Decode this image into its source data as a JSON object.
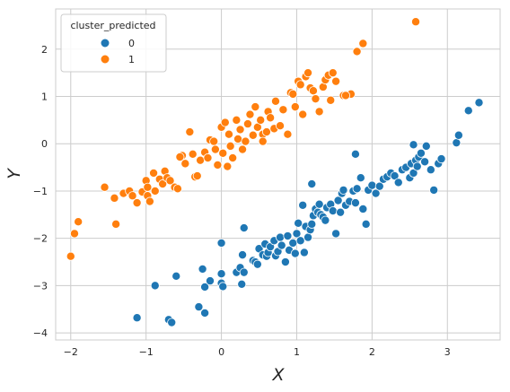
{
  "chart_data": {
    "type": "scatter",
    "xlabel": "X",
    "ylabel": "Y",
    "xlim": [
      -2.2,
      3.7
    ],
    "ylim": [
      -4.15,
      2.85
    ],
    "xticks": [
      -2,
      -1,
      0,
      1,
      2,
      3
    ],
    "yticks": [
      -4,
      -3,
      -2,
      -1,
      0,
      1,
      2
    ],
    "grid": true,
    "legend": {
      "title": "cluster_predicted",
      "placement": "top-left"
    },
    "series": [
      {
        "name": "0",
        "color": "#1f77b4",
        "points": [
          [
            -1.12,
            -3.68
          ],
          [
            -0.88,
            -3.0
          ],
          [
            -0.7,
            -3.72
          ],
          [
            -0.66,
            -3.78
          ],
          [
            -0.6,
            -2.8
          ],
          [
            -0.3,
            -3.45
          ],
          [
            -0.25,
            -2.65
          ],
          [
            -0.22,
            -3.58
          ],
          [
            -0.22,
            -3.03
          ],
          [
            -0.15,
            -2.9
          ],
          [
            0.0,
            -2.95
          ],
          [
            0.02,
            -3.02
          ],
          [
            0.0,
            -2.75
          ],
          [
            0.0,
            -2.1
          ],
          [
            0.2,
            -2.72
          ],
          [
            0.25,
            -2.62
          ],
          [
            0.27,
            -2.97
          ],
          [
            0.28,
            -2.35
          ],
          [
            0.3,
            -2.72
          ],
          [
            0.3,
            -1.78
          ],
          [
            0.42,
            -2.47
          ],
          [
            0.45,
            -2.5
          ],
          [
            0.48,
            -2.55
          ],
          [
            0.5,
            -2.22
          ],
          [
            0.55,
            -2.35
          ],
          [
            0.58,
            -2.12
          ],
          [
            0.6,
            -2.38
          ],
          [
            0.62,
            -2.3
          ],
          [
            0.65,
            -2.18
          ],
          [
            0.7,
            -2.05
          ],
          [
            0.72,
            -2.37
          ],
          [
            0.75,
            -2.28
          ],
          [
            0.78,
            -1.98
          ],
          [
            0.8,
            -2.15
          ],
          [
            0.85,
            -2.5
          ],
          [
            0.88,
            -1.95
          ],
          [
            0.9,
            -2.25
          ],
          [
            0.95,
            -2.1
          ],
          [
            0.98,
            -2.32
          ],
          [
            1.0,
            -1.9
          ],
          [
            1.02,
            -1.68
          ],
          [
            1.05,
            -2.05
          ],
          [
            1.08,
            -1.3
          ],
          [
            1.1,
            -2.3
          ],
          [
            1.12,
            -1.75
          ],
          [
            1.15,
            -1.98
          ],
          [
            1.18,
            -1.82
          ],
          [
            1.2,
            -1.7
          ],
          [
            1.22,
            -1.52
          ],
          [
            1.25,
            -1.38
          ],
          [
            1.28,
            -1.45
          ],
          [
            1.3,
            -1.28
          ],
          [
            1.32,
            -1.5
          ],
          [
            1.35,
            -1.55
          ],
          [
            1.38,
            -1.62
          ],
          [
            1.4,
            -1.35
          ],
          [
            1.45,
            -1.28
          ],
          [
            1.48,
            -1.42
          ],
          [
            1.52,
            -1.9
          ],
          [
            1.55,
            -1.2
          ],
          [
            1.58,
            -1.45
          ],
          [
            1.6,
            -1.05
          ],
          [
            1.62,
            -0.98
          ],
          [
            1.65,
            -1.3
          ],
          [
            1.7,
            -1.22
          ],
          [
            1.75,
            -1.0
          ],
          [
            1.78,
            -1.25
          ],
          [
            1.8,
            -0.95
          ],
          [
            1.85,
            -0.72
          ],
          [
            1.88,
            -1.38
          ],
          [
            1.92,
            -1.7
          ],
          [
            1.95,
            -0.98
          ],
          [
            2.0,
            -0.88
          ],
          [
            2.05,
            -1.05
          ],
          [
            2.1,
            -0.9
          ],
          [
            2.15,
            -0.75
          ],
          [
            2.2,
            -0.7
          ],
          [
            2.25,
            -0.62
          ],
          [
            2.3,
            -0.68
          ],
          [
            2.35,
            -0.82
          ],
          [
            2.4,
            -0.55
          ],
          [
            2.45,
            -0.5
          ],
          [
            2.5,
            -0.72
          ],
          [
            2.52,
            -0.42
          ],
          [
            2.55,
            -0.62
          ],
          [
            2.58,
            -0.35
          ],
          [
            2.6,
            -0.48
          ],
          [
            2.62,
            -0.28
          ],
          [
            2.65,
            -0.2
          ],
          [
            2.7,
            -0.38
          ],
          [
            2.72,
            -0.05
          ],
          [
            2.78,
            -0.55
          ],
          [
            2.82,
            -0.98
          ],
          [
            2.88,
            -0.42
          ],
          [
            2.92,
            -0.32
          ],
          [
            3.12,
            0.02
          ],
          [
            3.15,
            0.18
          ],
          [
            3.28,
            0.7
          ],
          [
            3.42,
            0.87
          ],
          [
            1.2,
            -0.85
          ],
          [
            2.55,
            -0.02
          ],
          [
            1.78,
            -0.22
          ]
        ]
      },
      {
        "name": "1",
        "color": "#ff7f0e",
        "points": [
          [
            -2.0,
            -2.38
          ],
          [
            -1.95,
            -1.9
          ],
          [
            -1.9,
            -1.65
          ],
          [
            -1.55,
            -0.92
          ],
          [
            -1.42,
            -1.15
          ],
          [
            -1.4,
            -1.7
          ],
          [
            -1.3,
            -1.05
          ],
          [
            -1.22,
            -1.0
          ],
          [
            -1.18,
            -1.1
          ],
          [
            -1.12,
            -1.25
          ],
          [
            -1.05,
            -1.02
          ],
          [
            -1.0,
            -0.78
          ],
          [
            -0.98,
            -1.1
          ],
          [
            -0.95,
            -1.22
          ],
          [
            -0.9,
            -0.62
          ],
          [
            -0.88,
            -1.0
          ],
          [
            -0.82,
            -0.75
          ],
          [
            -0.78,
            -0.85
          ],
          [
            -0.75,
            -0.58
          ],
          [
            -0.72,
            -0.72
          ],
          [
            -0.68,
            -0.78
          ],
          [
            -0.62,
            -0.92
          ],
          [
            -0.58,
            -0.95
          ],
          [
            -0.52,
            -0.25
          ],
          [
            -0.48,
            -0.42
          ],
          [
            -0.42,
            0.25
          ],
          [
            -0.38,
            -0.22
          ],
          [
            -0.35,
            -0.7
          ],
          [
            -0.32,
            -0.68
          ],
          [
            -0.28,
            -0.35
          ],
          [
            -0.22,
            -0.18
          ],
          [
            -0.18,
            -0.3
          ],
          [
            -0.15,
            0.08
          ],
          [
            -0.1,
            0.05
          ],
          [
            -0.08,
            -0.12
          ],
          [
            -0.05,
            -0.45
          ],
          [
            0.0,
            0.35
          ],
          [
            0.02,
            -0.2
          ],
          [
            0.05,
            0.45
          ],
          [
            0.08,
            -0.48
          ],
          [
            0.1,
            0.2
          ],
          [
            0.15,
            -0.3
          ],
          [
            0.2,
            0.5
          ],
          [
            0.22,
            0.1
          ],
          [
            0.25,
            0.3
          ],
          [
            0.28,
            -0.12
          ],
          [
            0.32,
            0.05
          ],
          [
            0.35,
            0.42
          ],
          [
            0.38,
            0.62
          ],
          [
            0.42,
            0.18
          ],
          [
            0.45,
            0.78
          ],
          [
            0.48,
            0.35
          ],
          [
            0.52,
            0.5
          ],
          [
            0.55,
            0.2
          ],
          [
            0.6,
            0.25
          ],
          [
            0.62,
            0.68
          ],
          [
            0.65,
            0.55
          ],
          [
            0.7,
            0.32
          ],
          [
            0.72,
            0.9
          ],
          [
            0.78,
            0.38
          ],
          [
            0.82,
            0.72
          ],
          [
            0.88,
            0.2
          ],
          [
            0.92,
            1.08
          ],
          [
            0.95,
            1.05
          ],
          [
            0.98,
            0.78
          ],
          [
            1.02,
            1.32
          ],
          [
            1.05,
            1.25
          ],
          [
            1.08,
            0.62
          ],
          [
            1.12,
            1.42
          ],
          [
            1.15,
            1.5
          ],
          [
            1.18,
            1.18
          ],
          [
            1.22,
            1.12
          ],
          [
            1.25,
            0.95
          ],
          [
            1.3,
            0.68
          ],
          [
            1.35,
            1.2
          ],
          [
            1.38,
            1.35
          ],
          [
            1.42,
            1.45
          ],
          [
            1.45,
            0.92
          ],
          [
            1.48,
            1.5
          ],
          [
            1.52,
            1.32
          ],
          [
            1.62,
            1.02
          ],
          [
            1.72,
            1.05
          ],
          [
            1.8,
            1.95
          ],
          [
            1.88,
            2.12
          ],
          [
            2.58,
            2.58
          ],
          [
            -0.98,
            -0.92
          ],
          [
            -0.55,
            -0.28
          ],
          [
            0.12,
            -0.05
          ],
          [
            0.55,
            0.05
          ],
          [
            1.65,
            1.02
          ]
        ]
      }
    ]
  }
}
